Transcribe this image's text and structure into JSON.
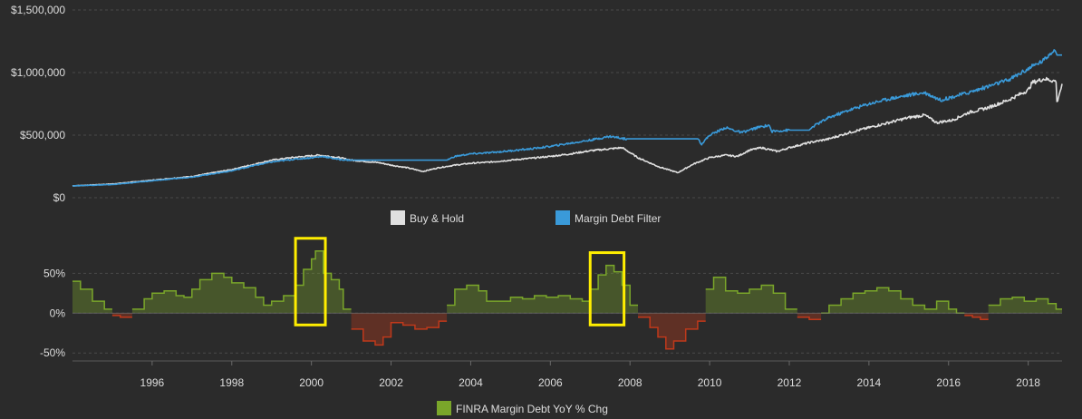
{
  "chart_data": [
    {
      "type": "line",
      "title": "",
      "xlabel": "",
      "ylabel": "",
      "xlim": [
        1994.0,
        2018.85
      ],
      "ylim": [
        0,
        1500000
      ],
      "yticks": [
        0,
        500000,
        1000000,
        1500000
      ],
      "ytick_labels": [
        "$0",
        "$500,000",
        "$1,000,000",
        "$1,500,000"
      ],
      "grid": "horizontal dashed",
      "legend_position": "bottom-center",
      "series": [
        {
          "name": "Buy & Hold",
          "color": "#e0e0e0",
          "x": [
            1994.0,
            1995.0,
            1996.0,
            1997.0,
            1998.0,
            1998.6,
            1999.0,
            1999.5,
            2000.0,
            2000.2,
            2000.7,
            2001.0,
            2001.7,
            2002.0,
            2002.4,
            2002.8,
            2003.2,
            2003.6,
            2004.0,
            2004.5,
            2005.0,
            2005.5,
            2006.0,
            2006.5,
            2007.0,
            2007.8,
            2008.2,
            2008.7,
            2009.0,
            2009.2,
            2009.6,
            2010.0,
            2010.4,
            2010.7,
            2011.0,
            2011.3,
            2011.7,
            2012.0,
            2012.5,
            2013.0,
            2013.5,
            2014.0,
            2014.5,
            2015.0,
            2015.4,
            2015.7,
            2016.1,
            2016.5,
            2017.0,
            2017.5,
            2018.0,
            2018.1,
            2018.4,
            2018.7,
            2018.72,
            2018.8,
            2018.85
          ],
          "values": [
            95000,
            110000,
            140000,
            170000,
            225000,
            270000,
            300000,
            320000,
            335000,
            340000,
            320000,
            300000,
            280000,
            260000,
            240000,
            210000,
            240000,
            260000,
            275000,
            285000,
            300000,
            315000,
            330000,
            350000,
            375000,
            400000,
            320000,
            250000,
            220000,
            200000,
            270000,
            320000,
            340000,
            330000,
            380000,
            400000,
            370000,
            400000,
            440000,
            470000,
            520000,
            560000,
            600000,
            640000,
            660000,
            600000,
            620000,
            680000,
            720000,
            780000,
            860000,
            920000,
            950000,
            930000,
            760000,
            850000,
            900000
          ]
        },
        {
          "name": "Margin Debt Filter",
          "color": "#3a9ad9",
          "x": [
            1994.0,
            1995.0,
            1996.0,
            1997.0,
            1998.0,
            1998.6,
            1999.0,
            1999.5,
            2000.0,
            2000.3,
            2000.7,
            2001.0,
            2003.4,
            2003.6,
            2004.0,
            2004.5,
            2005.0,
            2005.5,
            2006.0,
            2006.5,
            2007.0,
            2007.5,
            2007.9,
            2009.7,
            2009.8,
            2010.0,
            2010.4,
            2010.8,
            2011.2,
            2011.5,
            2011.55,
            2012.0,
            2012.5,
            2012.6,
            2013.0,
            2013.5,
            2014.0,
            2014.5,
            2015.0,
            2015.4,
            2015.8,
            2016.5,
            2017.0,
            2017.5,
            2018.0,
            2018.4,
            2018.65,
            2018.7,
            2018.85
          ],
          "values": [
            95000,
            105000,
            135000,
            165000,
            215000,
            260000,
            285000,
            305000,
            320000,
            330000,
            305000,
            300000,
            300000,
            330000,
            350000,
            360000,
            375000,
            390000,
            410000,
            435000,
            460000,
            490000,
            470000,
            470000,
            430000,
            500000,
            560000,
            520000,
            560000,
            580000,
            530000,
            540000,
            540000,
            570000,
            640000,
            700000,
            750000,
            790000,
            820000,
            840000,
            780000,
            840000,
            890000,
            940000,
            1030000,
            1100000,
            1190000,
            1140000,
            1140000
          ]
        }
      ]
    },
    {
      "type": "area",
      "title": "",
      "xlabel": "",
      "ylabel": "",
      "xlim": [
        1994.0,
        2018.85
      ],
      "ylim": [
        -60,
        80
      ],
      "yticks": [
        -50,
        0,
        50
      ],
      "ytick_labels": [
        "-50%",
        "0%",
        "50%"
      ],
      "xticks": [
        1996,
        1998,
        2000,
        2002,
        2004,
        2006,
        2008,
        2010,
        2012,
        2014,
        2016,
        2018
      ],
      "xtick_labels": [
        "1996",
        "1998",
        "2000",
        "2002",
        "2004",
        "2006",
        "2008",
        "2010",
        "2012",
        "2014",
        "2016",
        "2018"
      ],
      "grid": "horizontal dashed",
      "legend_position": "bottom-center",
      "positive_color": "#7aa62a",
      "negative_color": "#c0391b",
      "highlight_color": "#ffee00",
      "highlights": [
        [
          1999.6,
          2000.35
        ],
        [
          2007.0,
          2007.85
        ]
      ],
      "series": [
        {
          "name": "FINRA Margin Debt YoY % Chg",
          "color": "#7aa62a",
          "x": [
            1994.0,
            1994.2,
            1994.5,
            1994.8,
            1995.0,
            1995.2,
            1995.5,
            1995.8,
            1996.0,
            1996.3,
            1996.6,
            1996.8,
            1997.0,
            1997.2,
            1997.5,
            1997.8,
            1998.0,
            1998.3,
            1998.6,
            1998.8,
            1999.0,
            1999.3,
            1999.6,
            1999.8,
            2000.0,
            2000.1,
            2000.3,
            2000.5,
            2000.7,
            2000.8,
            2001.0,
            2001.3,
            2001.6,
            2001.8,
            2002.0,
            2002.3,
            2002.6,
            2002.9,
            2003.2,
            2003.4,
            2003.6,
            2003.9,
            2004.2,
            2004.4,
            2004.7,
            2005.0,
            2005.3,
            2005.6,
            2005.9,
            2006.2,
            2006.5,
            2006.8,
            2007.0,
            2007.2,
            2007.4,
            2007.6,
            2007.8,
            2008.0,
            2008.2,
            2008.5,
            2008.7,
            2008.9,
            2009.1,
            2009.4,
            2009.7,
            2009.9,
            2010.1,
            2010.4,
            2010.7,
            2011.0,
            2011.3,
            2011.6,
            2011.9,
            2012.2,
            2012.5,
            2012.8,
            2013.0,
            2013.3,
            2013.6,
            2013.9,
            2014.2,
            2014.5,
            2014.8,
            2015.1,
            2015.4,
            2015.7,
            2016.0,
            2016.2,
            2016.4,
            2016.6,
            2016.8,
            2017.0,
            2017.3,
            2017.6,
            2017.9,
            2018.2,
            2018.5,
            2018.7,
            2018.85
          ],
          "values": [
            40,
            30,
            15,
            5,
            -3,
            -5,
            5,
            18,
            25,
            28,
            22,
            20,
            30,
            42,
            50,
            45,
            38,
            32,
            20,
            10,
            15,
            22,
            35,
            55,
            68,
            78,
            50,
            42,
            30,
            5,
            -20,
            -35,
            -40,
            -30,
            -12,
            -15,
            -20,
            -18,
            -10,
            10,
            30,
            35,
            28,
            15,
            15,
            20,
            18,
            22,
            20,
            22,
            18,
            15,
            30,
            48,
            60,
            52,
            35,
            10,
            -5,
            -18,
            -30,
            -45,
            -35,
            -20,
            -10,
            30,
            45,
            28,
            25,
            30,
            35,
            25,
            5,
            -5,
            -8,
            0,
            10,
            18,
            25,
            28,
            32,
            28,
            18,
            10,
            5,
            15,
            5,
            0,
            -3,
            -5,
            -8,
            10,
            18,
            20,
            15,
            18,
            12,
            5,
            -12
          ]
        }
      ]
    }
  ]
}
